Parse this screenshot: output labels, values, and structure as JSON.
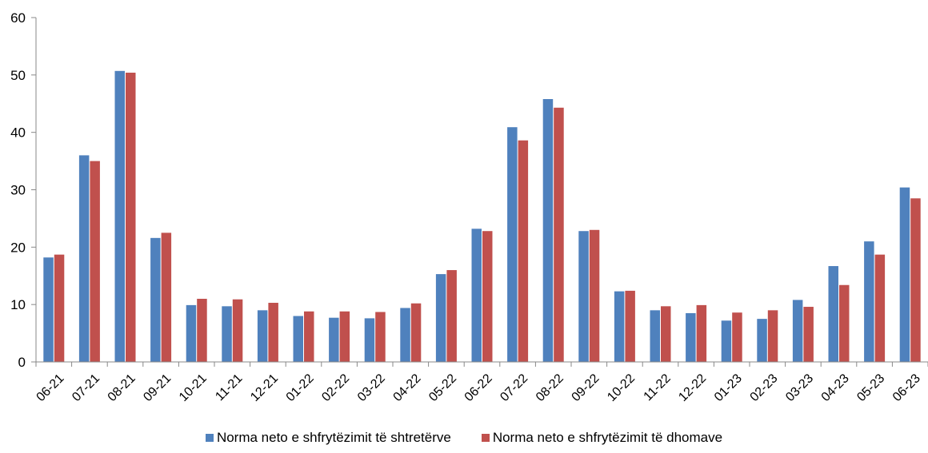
{
  "chart_data": {
    "type": "bar",
    "categories": [
      "06-21",
      "07-21",
      "08-21",
      "09-21",
      "10-21",
      "11-21",
      "12-21",
      "01-22",
      "02-22",
      "03-22",
      "04-22",
      "05-22",
      "06-22",
      "07-22",
      "08-22",
      "09-22",
      "10-22",
      "11-22",
      "12-22",
      "01-23",
      "02-23",
      "03-23",
      "04-23",
      "05-23",
      "06-23"
    ],
    "series": [
      {
        "name": "Norma neto e shfrytëzimit të shtretërve",
        "color": "#4F81BD",
        "values": [
          18.2,
          36.0,
          50.7,
          21.6,
          9.9,
          9.7,
          9.0,
          8.0,
          7.7,
          7.6,
          9.4,
          15.3,
          23.2,
          40.9,
          45.8,
          22.8,
          12.3,
          9.0,
          8.5,
          7.2,
          7.5,
          10.8,
          16.7,
          21.0,
          30.4
        ]
      },
      {
        "name": "Norma neto e shfrytëzimit të dhomave",
        "color": "#C0504D",
        "values": [
          18.7,
          35.0,
          50.4,
          22.5,
          11.0,
          10.9,
          10.3,
          8.8,
          8.8,
          8.7,
          10.2,
          16.0,
          22.8,
          38.6,
          44.3,
          23.0,
          12.4,
          9.7,
          9.9,
          8.6,
          9.0,
          9.6,
          13.4,
          18.7,
          28.5
        ]
      }
    ],
    "ylim": [
      0,
      60
    ],
    "yticks": [
      0,
      10,
      20,
      30,
      40,
      50,
      60
    ],
    "legend_position": "bottom",
    "grid": false
  }
}
